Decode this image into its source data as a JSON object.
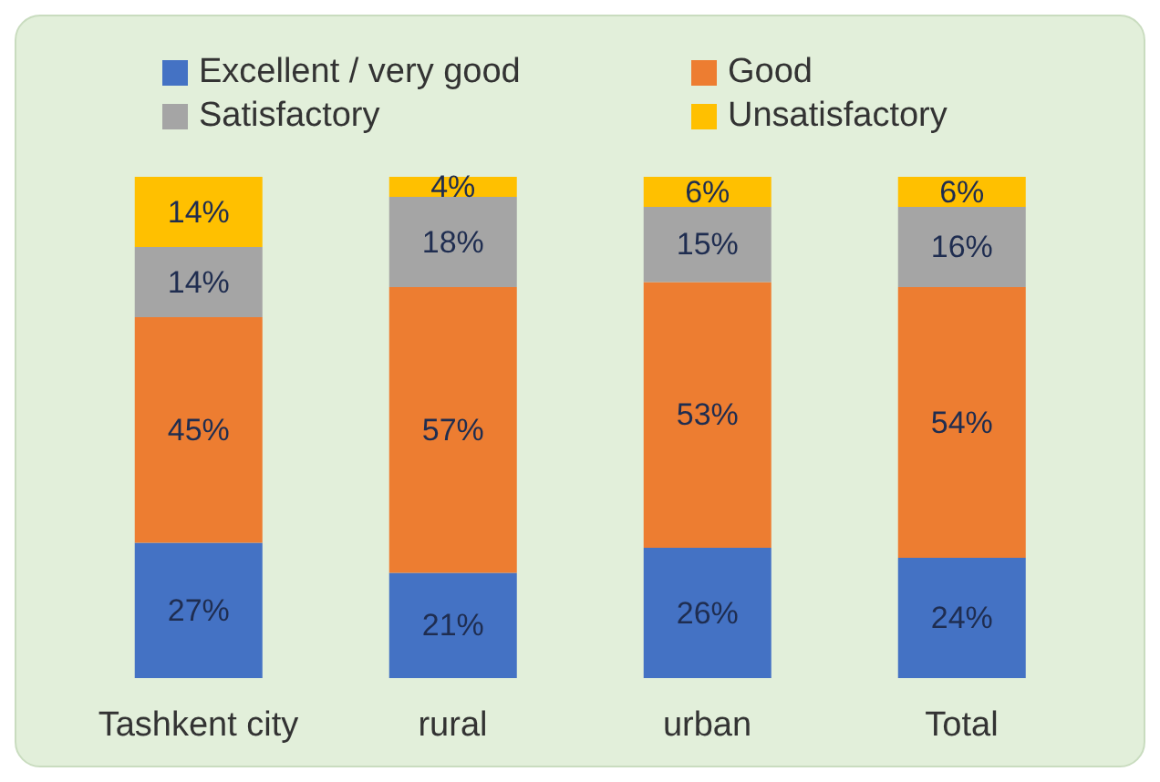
{
  "chart_data": {
    "type": "bar",
    "stacked": true,
    "categories": [
      "Tashkent city",
      "rural",
      "urban",
      "Total"
    ],
    "ylim": [
      0,
      100
    ],
    "tick_labels": "x",
    "grid": false,
    "legend": "top",
    "series": [
      {
        "name": "Excellent / very good",
        "color": "#4472c4",
        "values": [
          27,
          21,
          26,
          24
        ],
        "value_labels": [
          "27%",
          "21%",
          "26%",
          "24%"
        ]
      },
      {
        "name": "Good",
        "color": "#ed7d31",
        "values": [
          45,
          57,
          53,
          54
        ],
        "value_labels": [
          "45%",
          "57%",
          "53%",
          "54%"
        ]
      },
      {
        "name": "Satisfactory",
        "color": "#a5a5a5",
        "values": [
          14,
          18,
          15,
          16
        ],
        "value_labels": [
          "14%",
          "18%",
          "15%",
          "16%"
        ]
      },
      {
        "name": "Unsatisfactory",
        "color": "#ffc000",
        "values": [
          14,
          4,
          6,
          6
        ],
        "value_labels": [
          "14%",
          "4%",
          "6%",
          "6%"
        ]
      }
    ]
  }
}
